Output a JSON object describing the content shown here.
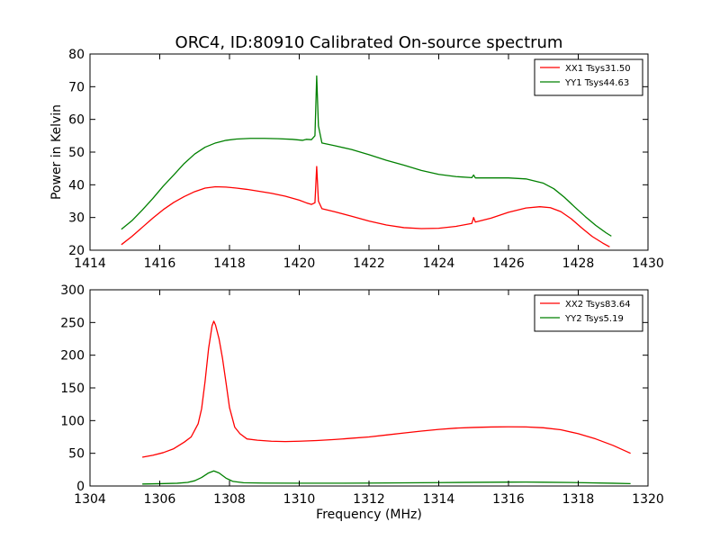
{
  "title": "ORC4, ID:80910 Calibrated On-source spectrum",
  "colors": {
    "red": "#ff0000",
    "green": "#008000"
  },
  "chart_data": [
    {
      "type": "line",
      "title": "ORC4, ID:80910 Calibrated On-source spectrum",
      "xlabel": "",
      "ylabel": "Power in Kelvin",
      "xlim": [
        1414,
        1430
      ],
      "ylim": [
        20,
        80
      ],
      "xticks": [
        1414,
        1416,
        1418,
        1420,
        1422,
        1424,
        1426,
        1428,
        1430
      ],
      "yticks": [
        20,
        30,
        40,
        50,
        60,
        70,
        80
      ],
      "legend": "top-right",
      "series": [
        {
          "name": "XX1 Tsys31.50",
          "color": "#ff0000",
          "points": [
            [
              1414.9,
              21.7
            ],
            [
              1415.2,
              24.2
            ],
            [
              1415.5,
              27.0
            ],
            [
              1415.8,
              29.8
            ],
            [
              1416.1,
              32.4
            ],
            [
              1416.4,
              34.6
            ],
            [
              1416.7,
              36.4
            ],
            [
              1417.0,
              37.9
            ],
            [
              1417.3,
              39.0
            ],
            [
              1417.6,
              39.4
            ],
            [
              1417.9,
              39.3
            ],
            [
              1418.2,
              39.0
            ],
            [
              1418.5,
              38.6
            ],
            [
              1418.8,
              38.1
            ],
            [
              1419.2,
              37.4
            ],
            [
              1419.6,
              36.5
            ],
            [
              1420.0,
              35.3
            ],
            [
              1420.2,
              34.5
            ],
            [
              1420.35,
              34.0
            ],
            [
              1420.45,
              34.5
            ],
            [
              1420.5,
              45.6
            ],
            [
              1420.55,
              35.0
            ],
            [
              1420.65,
              32.7
            ],
            [
              1421.0,
              31.8
            ],
            [
              1421.5,
              30.4
            ],
            [
              1422.0,
              28.9
            ],
            [
              1422.5,
              27.7
            ],
            [
              1423.0,
              26.9
            ],
            [
              1423.5,
              26.6
            ],
            [
              1424.0,
              26.7
            ],
            [
              1424.5,
              27.3
            ],
            [
              1424.95,
              28.2
            ],
            [
              1425.0,
              30.0
            ],
            [
              1425.05,
              28.6
            ],
            [
              1425.5,
              29.8
            ],
            [
              1426.0,
              31.6
            ],
            [
              1426.5,
              32.9
            ],
            [
              1426.9,
              33.3
            ],
            [
              1427.2,
              33.0
            ],
            [
              1427.5,
              31.8
            ],
            [
              1427.8,
              29.6
            ],
            [
              1428.1,
              26.8
            ],
            [
              1428.4,
              24.2
            ],
            [
              1428.7,
              22.2
            ],
            [
              1428.9,
              21.0
            ]
          ]
        },
        {
          "name": "YY1 Tsys44.63",
          "color": "#008000",
          "points": [
            [
              1414.9,
              26.4
            ],
            [
              1415.2,
              29.0
            ],
            [
              1415.5,
              32.3
            ],
            [
              1415.8,
              35.8
            ],
            [
              1416.1,
              39.6
            ],
            [
              1416.4,
              43.0
            ],
            [
              1416.7,
              46.5
            ],
            [
              1417.0,
              49.4
            ],
            [
              1417.3,
              51.5
            ],
            [
              1417.6,
              52.8
            ],
            [
              1417.9,
              53.6
            ],
            [
              1418.2,
              54.0
            ],
            [
              1418.6,
              54.2
            ],
            [
              1419.0,
              54.2
            ],
            [
              1419.4,
              54.1
            ],
            [
              1419.8,
              53.9
            ],
            [
              1420.1,
              53.6
            ],
            [
              1420.2,
              53.9
            ],
            [
              1420.35,
              53.8
            ],
            [
              1420.45,
              55.0
            ],
            [
              1420.5,
              73.3
            ],
            [
              1420.55,
              58.0
            ],
            [
              1420.65,
              52.8
            ],
            [
              1421.0,
              52.0
            ],
            [
              1421.5,
              50.8
            ],
            [
              1422.0,
              49.2
            ],
            [
              1422.5,
              47.5
            ],
            [
              1423.0,
              46.0
            ],
            [
              1423.5,
              44.4
            ],
            [
              1424.0,
              43.2
            ],
            [
              1424.5,
              42.5
            ],
            [
              1424.95,
              42.2
            ],
            [
              1425.0,
              43.0
            ],
            [
              1425.05,
              42.1
            ],
            [
              1425.5,
              42.1
            ],
            [
              1426.0,
              42.1
            ],
            [
              1426.5,
              41.8
            ],
            [
              1427.0,
              40.5
            ],
            [
              1427.3,
              38.8
            ],
            [
              1427.6,
              36.2
            ],
            [
              1427.9,
              33.2
            ],
            [
              1428.2,
              30.3
            ],
            [
              1428.5,
              27.6
            ],
            [
              1428.8,
              25.3
            ],
            [
              1428.95,
              24.3
            ]
          ]
        }
      ]
    },
    {
      "type": "line",
      "title": "",
      "xlabel": "Frequency (MHz)",
      "ylabel": "",
      "xlim": [
        1304,
        1320
      ],
      "ylim": [
        0,
        300
      ],
      "xticks": [
        1304,
        1306,
        1308,
        1310,
        1312,
        1314,
        1316,
        1318,
        1320
      ],
      "yticks": [
        0,
        50,
        100,
        150,
        200,
        250,
        300
      ],
      "legend": "top-right",
      "series": [
        {
          "name": "XX2 Tsys83.64",
          "color": "#ff0000",
          "points": [
            [
              1305.5,
              44
            ],
            [
              1305.8,
              47
            ],
            [
              1306.1,
              51
            ],
            [
              1306.4,
              57
            ],
            [
              1306.7,
              67
            ],
            [
              1306.9,
              75
            ],
            [
              1307.0,
              85
            ],
            [
              1307.1,
              95
            ],
            [
              1307.2,
              118
            ],
            [
              1307.3,
              160
            ],
            [
              1307.4,
              210
            ],
            [
              1307.5,
              245
            ],
            [
              1307.55,
              252
            ],
            [
              1307.6,
              246
            ],
            [
              1307.7,
              225
            ],
            [
              1307.8,
              195
            ],
            [
              1307.9,
              158
            ],
            [
              1308.0,
              120
            ],
            [
              1308.15,
              90
            ],
            [
              1308.3,
              80
            ],
            [
              1308.5,
              72
            ],
            [
              1308.8,
              70
            ],
            [
              1309.2,
              68.5
            ],
            [
              1309.6,
              68
            ],
            [
              1310.0,
              68.5
            ],
            [
              1310.5,
              69.5
            ],
            [
              1311.0,
              71
            ],
            [
              1311.5,
              73
            ],
            [
              1312.0,
              75
            ],
            [
              1312.5,
              78
            ],
            [
              1313.0,
              81
            ],
            [
              1313.5,
              84
            ],
            [
              1314.0,
              86.5
            ],
            [
              1314.5,
              88.5
            ],
            [
              1315.0,
              89.5
            ],
            [
              1315.5,
              90.2
            ],
            [
              1316.0,
              90.5
            ],
            [
              1316.5,
              90.3
            ],
            [
              1317.0,
              89
            ],
            [
              1317.5,
              86
            ],
            [
              1318.0,
              80
            ],
            [
              1318.5,
              72
            ],
            [
              1319.0,
              62
            ],
            [
              1319.5,
              50
            ]
          ]
        },
        {
          "name": "YY2 Tsys5.19",
          "color": "#008000",
          "points": [
            [
              1305.5,
              3
            ],
            [
              1306.0,
              3.5
            ],
            [
              1306.5,
              4.2
            ],
            [
              1306.8,
              5.5
            ],
            [
              1307.0,
              8
            ],
            [
              1307.2,
              13
            ],
            [
              1307.4,
              20
            ],
            [
              1307.55,
              23
            ],
            [
              1307.7,
              20
            ],
            [
              1307.9,
              12
            ],
            [
              1308.1,
              7
            ],
            [
              1308.4,
              5
            ],
            [
              1309.0,
              4.5
            ],
            [
              1310.0,
              4.3
            ],
            [
              1311.0,
              4.3
            ],
            [
              1312.0,
              4.5
            ],
            [
              1313.0,
              4.8
            ],
            [
              1314.0,
              5.2
            ],
            [
              1315.0,
              5.6
            ],
            [
              1316.0,
              5.9
            ],
            [
              1316.5,
              6
            ],
            [
              1317.0,
              5.8
            ],
            [
              1318.0,
              5.2
            ],
            [
              1319.0,
              4.2
            ],
            [
              1319.5,
              3.6
            ]
          ]
        }
      ]
    }
  ]
}
